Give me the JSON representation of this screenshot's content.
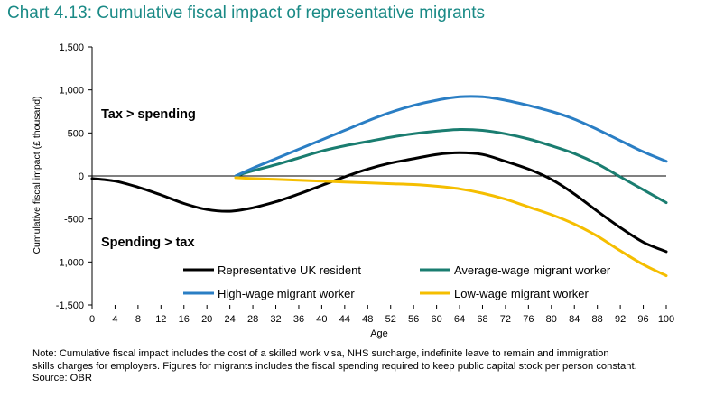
{
  "chart_data": {
    "type": "line",
    "title": "Chart 4.13: Cumulative fiscal impact of representative migrants",
    "xlabel": "Age",
    "ylabel": "Cumulative fiscal impact (£ thousand)",
    "xlim": [
      0,
      100
    ],
    "ylim": [
      -1500,
      1500
    ],
    "x_ticks": [
      "0",
      "4",
      "8",
      "12",
      "16",
      "20",
      "24",
      "28",
      "32",
      "36",
      "40",
      "44",
      "48",
      "52",
      "56",
      "60",
      "64",
      "68",
      "72",
      "76",
      "80",
      "84",
      "88",
      "92",
      "96",
      "100"
    ],
    "y_ticks": [
      "1,500",
      "1,000",
      "500",
      "0",
      "-500",
      "-1,000",
      "-1,500"
    ],
    "annotations": [
      "Tax > spending",
      "Spending > tax"
    ],
    "legend_position": "bottom-center",
    "series": [
      {
        "name": "Representative UK resident",
        "color": "#000000",
        "x": [
          0,
          4,
          8,
          12,
          16,
          20,
          24,
          28,
          32,
          36,
          40,
          44,
          48,
          52,
          56,
          60,
          64,
          68,
          72,
          76,
          80,
          84,
          88,
          92,
          96,
          100
        ],
        "values": [
          -30,
          -60,
          -130,
          -220,
          -320,
          -390,
          -410,
          -370,
          -300,
          -210,
          -110,
          -10,
          80,
          150,
          200,
          250,
          270,
          250,
          170,
          80,
          -40,
          -210,
          -410,
          -600,
          -770,
          -880
        ]
      },
      {
        "name": "Average-wage migrant worker",
        "color": "#1a7d70",
        "x": [
          25,
          28,
          32,
          36,
          40,
          44,
          48,
          52,
          56,
          60,
          64,
          68,
          72,
          76,
          80,
          84,
          88,
          92,
          96,
          100
        ],
        "values": [
          0,
          60,
          130,
          210,
          290,
          350,
          400,
          450,
          490,
          520,
          540,
          530,
          490,
          430,
          350,
          260,
          140,
          -10,
          -160,
          -310
        ]
      },
      {
        "name": "High-wage migrant worker",
        "color": "#2a7ec4",
        "x": [
          25,
          28,
          32,
          36,
          40,
          44,
          48,
          52,
          56,
          60,
          64,
          68,
          72,
          76,
          80,
          84,
          88,
          92,
          96,
          100
        ],
        "values": [
          0,
          90,
          200,
          310,
          420,
          530,
          640,
          740,
          820,
          880,
          920,
          920,
          880,
          820,
          750,
          660,
          540,
          410,
          280,
          170
        ]
      },
      {
        "name": "Low-wage migrant worker",
        "color": "#f5be00",
        "x": [
          25,
          28,
          32,
          36,
          40,
          44,
          48,
          52,
          56,
          60,
          64,
          68,
          72,
          76,
          80,
          84,
          88,
          92,
          96,
          100
        ],
        "values": [
          -20,
          -30,
          -40,
          -50,
          -60,
          -70,
          -80,
          -90,
          -100,
          -120,
          -150,
          -200,
          -270,
          -360,
          -450,
          -560,
          -700,
          -870,
          -1030,
          -1160
        ]
      }
    ]
  },
  "note": {
    "line1": "Note: Cumulative fiscal impact includes the cost of a skilled work visa, NHS surcharge, indefinite leave to remain and immigration",
    "line2": "skills charges for employers. Figures for migrants includes the fiscal spending required to keep public capital stock per person constant.",
    "line3": "Source: OBR"
  }
}
